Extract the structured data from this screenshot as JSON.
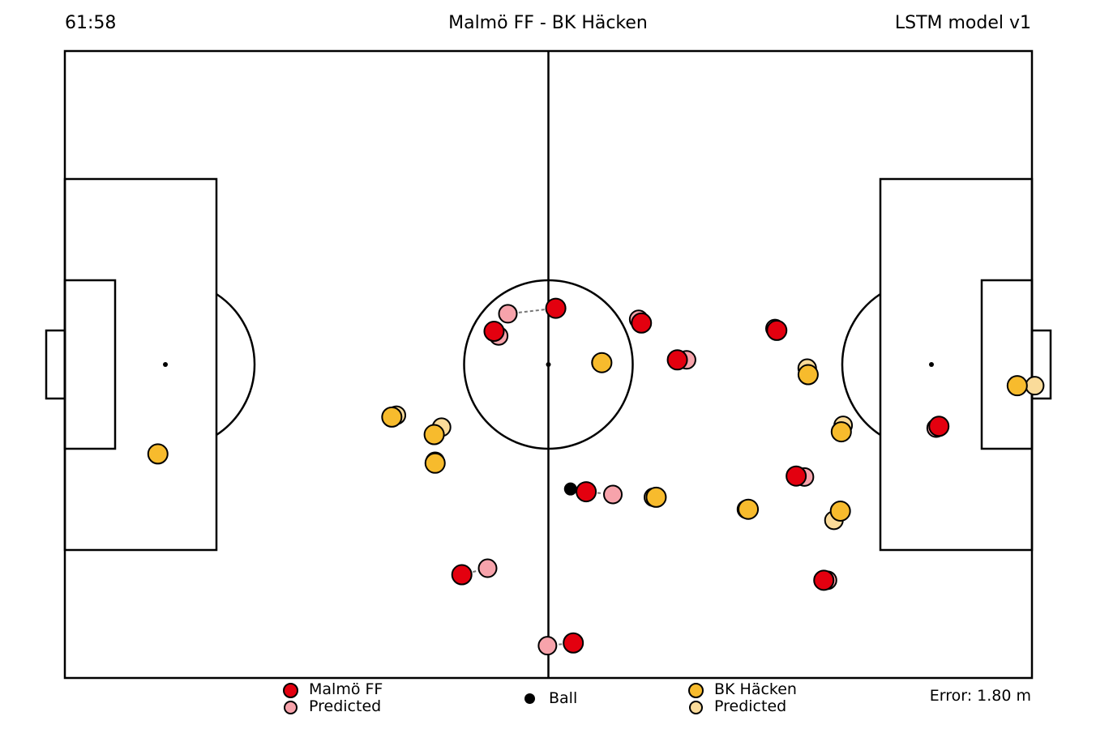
{
  "header": {
    "clock": "61:58",
    "title": "Malmö FF - BK Häcken",
    "model": "LSTM model v1"
  },
  "colors": {
    "home_actual": "#e3000f",
    "home_predicted": "#f7a3ab",
    "away_actual": "#f7bb2d",
    "away_predicted": "#fadb9a",
    "ball": "#000000",
    "lines": "#000000"
  },
  "pitch": {
    "length_m": 105,
    "width_m": 68
  },
  "players": {
    "home": [
      {
        "actual": [
          94.9,
          40.7
        ],
        "predicted": [
          94.6,
          40.9
        ]
      },
      {
        "actual": [
          82.4,
          57.4
        ],
        "predicted": [
          82.8,
          57.4
        ]
      },
      {
        "actual": [
          79.4,
          46.1
        ],
        "predicted": [
          80.3,
          46.2
        ]
      },
      {
        "actual": [
          77.3,
          30.3
        ],
        "predicted": [
          77.1,
          30.1
        ]
      },
      {
        "actual": [
          66.5,
          33.5
        ],
        "predicted": [
          67.5,
          33.5
        ]
      },
      {
        "actual": [
          62.6,
          29.5
        ],
        "predicted": [
          62.3,
          29.1
        ]
      },
      {
        "actual": [
          56.6,
          47.8
        ],
        "predicted": [
          59.5,
          48.1
        ]
      },
      {
        "actual": [
          43.1,
          56.8
        ],
        "predicted": [
          45.9,
          56.1
        ]
      },
      {
        "actual": [
          46.6,
          30.4
        ],
        "predicted": [
          47.1,
          30.9
        ]
      },
      {
        "actual": [
          55.2,
          64.2
        ],
        "predicted": [
          52.4,
          64.5
        ]
      },
      {
        "actual": [
          53.3,
          27.9
        ],
        "predicted": [
          48.1,
          28.5
        ]
      }
    ],
    "away": [
      {
        "actual": [
          103.4,
          36.3
        ],
        "predicted": [
          105.3,
          36.3
        ]
      },
      {
        "actual": [
          84.3,
          41.3
        ],
        "predicted": [
          84.5,
          40.6
        ]
      },
      {
        "actual": [
          80.7,
          35.1
        ],
        "predicted": [
          80.6,
          34.4
        ]
      },
      {
        "actual": [
          84.2,
          49.9
        ],
        "predicted": [
          83.5,
          50.9
        ]
      },
      {
        "actual": [
          74.2,
          49.7
        ],
        "predicted": [
          74.0,
          49.7
        ]
      },
      {
        "actual": [
          64.2,
          48.4
        ],
        "predicted": [
          63.9,
          48.4
        ]
      },
      {
        "actual": [
          58.3,
          33.8
        ],
        "predicted": [
          58.2,
          33.8
        ]
      },
      {
        "actual": [
          40.1,
          41.6
        ],
        "predicted": [
          40.9,
          40.8
        ]
      },
      {
        "actual": [
          40.2,
          44.7
        ],
        "predicted": [
          40.2,
          44.5
        ]
      },
      {
        "actual": [
          35.5,
          39.7
        ],
        "predicted": [
          36.0,
          39.5
        ]
      },
      {
        "actual": [
          10.1,
          43.7
        ],
        "predicted": [
          10.1,
          43.7
        ]
      }
    ],
    "ball": [
      54.9,
      47.5
    ]
  },
  "legend": {
    "home_actual": "Malmö FF",
    "home_predicted": "Predicted",
    "ball": "Ball",
    "away_actual": "BK Häcken",
    "away_predicted": "Predicted"
  },
  "error": "Error: 1.80 m"
}
